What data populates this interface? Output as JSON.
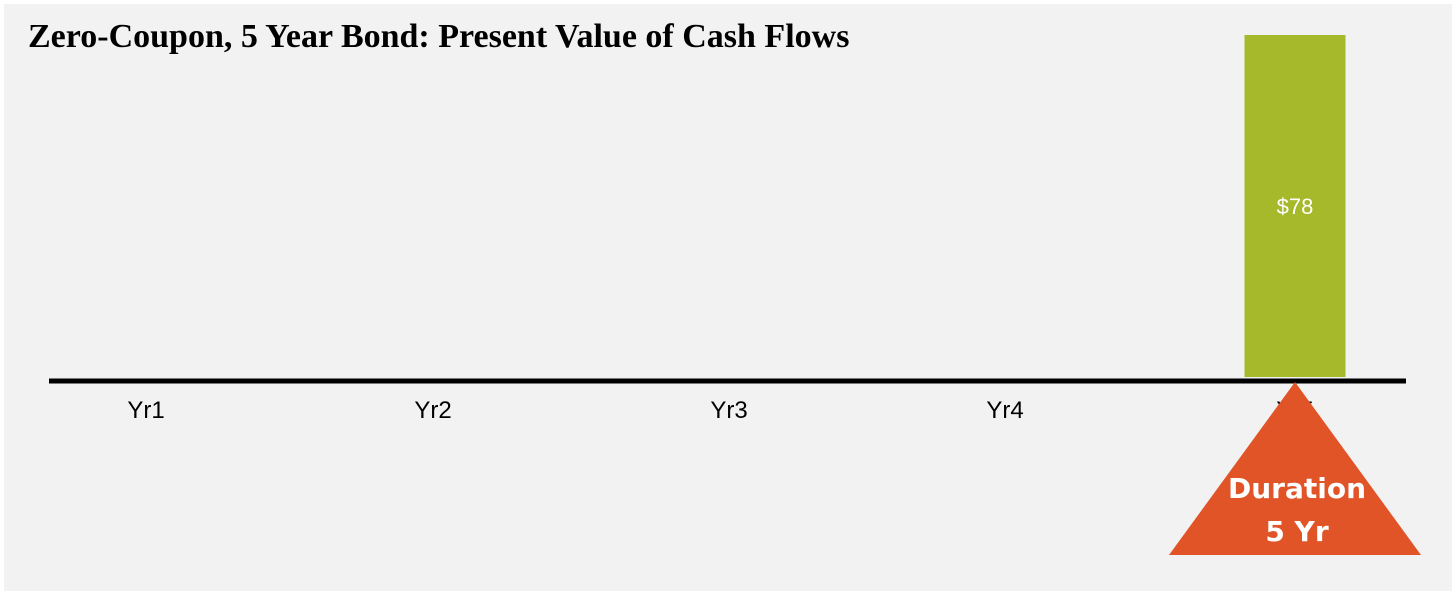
{
  "chart_data": {
    "type": "bar",
    "title": "Zero-Coupon, 5 Year Bond: Present Value of Cash Flows",
    "categories": [
      "Yr1",
      "Yr2",
      "Yr3",
      "Yr4",
      "Yr5"
    ],
    "values": [
      0,
      0,
      0,
      0,
      78
    ],
    "data_labels": [
      "",
      "",
      "",
      "",
      "$78"
    ],
    "ylim": [
      0,
      78
    ],
    "grid": false,
    "legend": "none",
    "xlabel": "",
    "ylabel": "",
    "annotation": {
      "shape": "triangle",
      "category": "Yr5",
      "lines": [
        "Duration",
        "5 Yr"
      ]
    }
  },
  "colors": {
    "background": "#f2f2f2",
    "bar": "#a5b92a",
    "axis": "#000000",
    "marker": "#e05428",
    "data_label": "#ffffff"
  }
}
